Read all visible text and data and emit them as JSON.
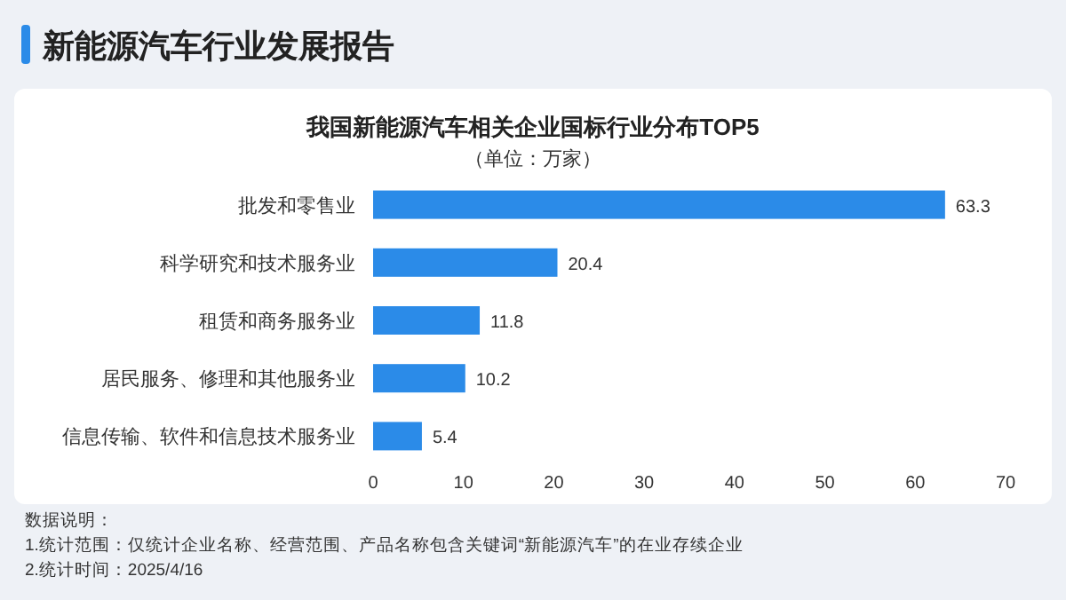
{
  "chart_data": {
    "type": "bar",
    "orientation": "horizontal",
    "title": "我国新能源汽车相关企业国标行业分布TOP5",
    "subtitle": "（单位：万家）",
    "categories": [
      "批发和零售业",
      "科学研究和技术服务业",
      "租赁和商务服务业",
      "居民服务、修理和其他服务业",
      "信息传输、软件和信息技术服务业"
    ],
    "values": [
      63.3,
      20.4,
      11.8,
      10.2,
      5.4
    ],
    "color": "#2b8be8",
    "data_labels": true,
    "xlim": [
      0,
      70
    ],
    "xticks": [
      0,
      10,
      20,
      30,
      40,
      50,
      60,
      70
    ],
    "grid": false,
    "annotations": [
      "新能源汽车行业发展报告",
      "数据说明：",
      "1.统计范围：仅统计企业名称、经营范围、产品名称包含关键词“新能源汽车”的在业存续企业",
      "2.统计时间：2025/4/16"
    ]
  }
}
